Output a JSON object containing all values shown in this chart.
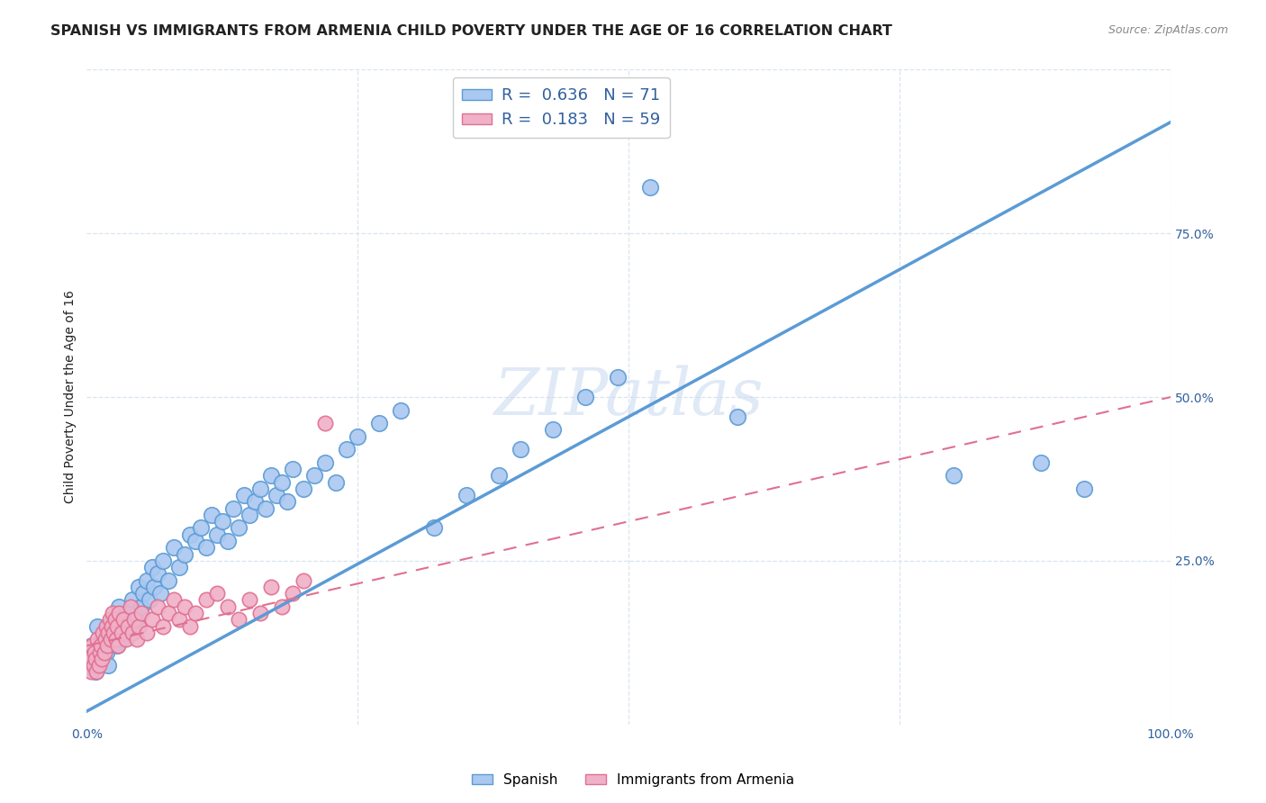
{
  "title": "SPANISH VS IMMIGRANTS FROM ARMENIA CHILD POVERTY UNDER THE AGE OF 16 CORRELATION CHART",
  "source": "Source: ZipAtlas.com",
  "ylabel": "Child Poverty Under the Age of 16",
  "xlabel": "",
  "xlim": [
    0,
    1
  ],
  "ylim": [
    0,
    1
  ],
  "xtick_positions": [
    0.0,
    0.25,
    0.5,
    0.75,
    1.0
  ],
  "xticklabels": [
    "0.0%",
    "",
    "",
    "",
    "100.0%"
  ],
  "ytick_positions": [],
  "right_ytick_positions": [
    0.25,
    0.5,
    0.75
  ],
  "right_yticklabels": [
    "25.0%",
    "50.0%",
    "75.0%"
  ],
  "watermark": "ZIPatlas",
  "bottom_legend": [
    "Spanish",
    "Immigrants from Armenia"
  ],
  "blue_scatter_x": [
    0.005,
    0.008,
    0.01,
    0.012,
    0.015,
    0.018,
    0.02,
    0.022,
    0.025,
    0.028,
    0.03,
    0.032,
    0.035,
    0.038,
    0.04,
    0.042,
    0.045,
    0.048,
    0.05,
    0.052,
    0.055,
    0.058,
    0.06,
    0.062,
    0.065,
    0.068,
    0.07,
    0.075,
    0.08,
    0.085,
    0.09,
    0.095,
    0.1,
    0.105,
    0.11,
    0.115,
    0.12,
    0.125,
    0.13,
    0.135,
    0.14,
    0.145,
    0.15,
    0.155,
    0.16,
    0.165,
    0.17,
    0.175,
    0.18,
    0.185,
    0.19,
    0.2,
    0.21,
    0.22,
    0.23,
    0.24,
    0.25,
    0.27,
    0.29,
    0.32,
    0.35,
    0.38,
    0.4,
    0.43,
    0.46,
    0.49,
    0.52,
    0.6,
    0.8,
    0.88,
    0.92
  ],
  "blue_scatter_y": [
    0.12,
    0.08,
    0.15,
    0.1,
    0.13,
    0.11,
    0.09,
    0.14,
    0.16,
    0.12,
    0.18,
    0.13,
    0.15,
    0.17,
    0.14,
    0.19,
    0.16,
    0.21,
    0.18,
    0.2,
    0.22,
    0.19,
    0.24,
    0.21,
    0.23,
    0.2,
    0.25,
    0.22,
    0.27,
    0.24,
    0.26,
    0.29,
    0.28,
    0.3,
    0.27,
    0.32,
    0.29,
    0.31,
    0.28,
    0.33,
    0.3,
    0.35,
    0.32,
    0.34,
    0.36,
    0.33,
    0.38,
    0.35,
    0.37,
    0.34,
    0.39,
    0.36,
    0.38,
    0.4,
    0.37,
    0.42,
    0.44,
    0.46,
    0.48,
    0.3,
    0.35,
    0.38,
    0.42,
    0.45,
    0.5,
    0.53,
    0.82,
    0.47,
    0.38,
    0.4,
    0.36
  ],
  "pink_scatter_x": [
    0.002,
    0.004,
    0.005,
    0.006,
    0.007,
    0.008,
    0.009,
    0.01,
    0.011,
    0.012,
    0.013,
    0.014,
    0.015,
    0.016,
    0.017,
    0.018,
    0.019,
    0.02,
    0.021,
    0.022,
    0.023,
    0.024,
    0.025,
    0.026,
    0.027,
    0.028,
    0.029,
    0.03,
    0.032,
    0.034,
    0.036,
    0.038,
    0.04,
    0.042,
    0.044,
    0.046,
    0.048,
    0.05,
    0.055,
    0.06,
    0.065,
    0.07,
    0.075,
    0.08,
    0.085,
    0.09,
    0.095,
    0.1,
    0.11,
    0.12,
    0.13,
    0.14,
    0.15,
    0.16,
    0.17,
    0.18,
    0.19,
    0.2,
    0.22
  ],
  "pink_scatter_y": [
    0.1,
    0.08,
    0.12,
    0.09,
    0.11,
    0.1,
    0.08,
    0.13,
    0.09,
    0.11,
    0.12,
    0.1,
    0.14,
    0.11,
    0.13,
    0.15,
    0.12,
    0.14,
    0.16,
    0.13,
    0.15,
    0.17,
    0.14,
    0.16,
    0.13,
    0.15,
    0.12,
    0.17,
    0.14,
    0.16,
    0.13,
    0.15,
    0.18,
    0.14,
    0.16,
    0.13,
    0.15,
    0.17,
    0.14,
    0.16,
    0.18,
    0.15,
    0.17,
    0.19,
    0.16,
    0.18,
    0.15,
    0.17,
    0.19,
    0.2,
    0.18,
    0.16,
    0.19,
    0.17,
    0.21,
    0.18,
    0.2,
    0.22,
    0.46
  ],
  "blue_line_x": [
    0.0,
    1.0
  ],
  "blue_line_y": [
    0.02,
    0.92
  ],
  "pink_line_x": [
    0.0,
    1.0
  ],
  "pink_line_y": [
    0.12,
    0.5
  ],
  "blue_color": "#5b9bd5",
  "pink_color": "#e07090",
  "blue_scatter_color": "#aac8f0",
  "pink_scatter_color": "#f0b0c8",
  "grid_color": "#d8e4f0",
  "background_color": "#ffffff",
  "title_fontsize": 11.5,
  "axis_label_fontsize": 10,
  "tick_fontsize": 10,
  "watermark_color": "#c8d8f0",
  "watermark_fontsize": 52,
  "legend_R1": "R =  0.636   N = 71",
  "legend_R2": "R =  0.183   N = 59"
}
